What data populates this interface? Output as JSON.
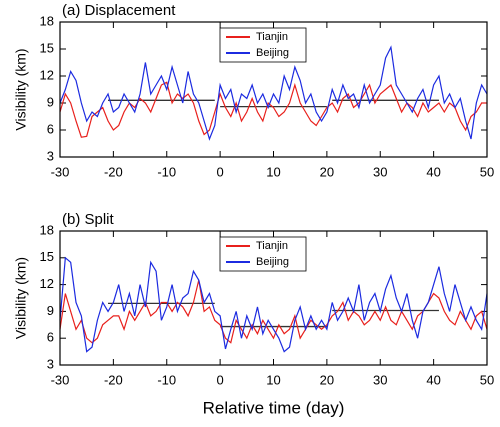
{
  "chart_data": [
    {
      "type": "line",
      "title": "(a) Displacement",
      "ylabel": "Visibility (km)",
      "x": [
        -30,
        -29,
        -28,
        -27,
        -26,
        -25,
        -24,
        -23,
        -22,
        -21,
        -20,
        -19,
        -18,
        -17,
        -16,
        -15,
        -14,
        -13,
        -12,
        -11,
        -10,
        -9,
        -8,
        -7,
        -6,
        -5,
        -4,
        -3,
        -2,
        -1,
        0,
        1,
        2,
        3,
        4,
        5,
        6,
        7,
        8,
        9,
        10,
        11,
        12,
        13,
        14,
        15,
        16,
        17,
        18,
        19,
        20,
        21,
        22,
        23,
        24,
        25,
        26,
        27,
        28,
        29,
        30,
        31,
        32,
        33,
        34,
        35,
        36,
        37,
        38,
        39,
        40,
        41,
        42,
        43,
        44,
        45,
        46,
        47,
        48,
        49,
        50
      ],
      "series": [
        {
          "name": "Tianjin",
          "color": "#e8201c",
          "values": [
            8,
            10,
            9,
            7,
            5.2,
            5.3,
            7.5,
            8,
            8.5,
            7,
            6,
            6.5,
            8,
            9,
            8.5,
            9.5,
            9,
            8,
            9.5,
            11,
            11.3,
            9,
            10,
            9.5,
            10,
            9,
            7,
            5.5,
            6,
            8,
            10,
            8.5,
            7.5,
            9,
            7,
            8,
            9.5,
            8,
            7,
            9,
            8.5,
            7.5,
            8,
            9,
            11,
            9,
            8,
            7,
            6.5,
            7.5,
            8.5,
            9,
            8,
            9.5,
            10,
            8.5,
            9,
            10,
            11,
            9,
            10,
            10.5,
            11,
            9.5,
            8,
            9,
            8.5,
            7.5,
            9,
            8,
            8.5,
            9,
            8,
            9,
            8.5,
            7,
            6,
            7.5,
            8,
            9,
            9
          ]
        },
        {
          "name": "Beijing",
          "color": "#1c2be0",
          "values": [
            9,
            10.5,
            12.5,
            11.5,
            9,
            7,
            8,
            7.5,
            9,
            10,
            8,
            8.5,
            10,
            9,
            8,
            10,
            13.5,
            10,
            11,
            12,
            10.5,
            13,
            11,
            9,
            12.5,
            10,
            9,
            7,
            5,
            6.5,
            11,
            9.5,
            10.5,
            8,
            10,
            9.5,
            11,
            9,
            10,
            8.5,
            10,
            9,
            12,
            10.5,
            13,
            11.5,
            9,
            10,
            8,
            7,
            8,
            10.5,
            9,
            11,
            9.5,
            10,
            8.5,
            11,
            9,
            10,
            11,
            14,
            15.2,
            11,
            10,
            9,
            8,
            9.5,
            10.5,
            8.5,
            11,
            12,
            9,
            10,
            8.5,
            9.5,
            7,
            5,
            9,
            11,
            10
          ]
        }
      ],
      "means": [
        {
          "x": [
            -21,
            -1
          ],
          "y": 9.3
        },
        {
          "x": [
            0,
            20
          ],
          "y": 8.6
        },
        {
          "x": [
            21,
            41
          ],
          "y": 9.3
        }
      ],
      "xlim": [
        -30,
        50
      ],
      "xticks": [
        -30,
        -20,
        -10,
        0,
        10,
        20,
        30,
        40,
        50
      ],
      "ylim": [
        3,
        18
      ],
      "yticks": [
        3,
        6,
        9,
        12,
        15,
        18
      ]
    },
    {
      "type": "line",
      "title": "(b) Split",
      "ylabel": "Visibility (km)",
      "xlabel": "Relative time (day)",
      "x": [
        -30,
        -29,
        -28,
        -27,
        -26,
        -25,
        -24,
        -23,
        -22,
        -21,
        -20,
        -19,
        -18,
        -17,
        -16,
        -15,
        -14,
        -13,
        -12,
        -11,
        -10,
        -9,
        -8,
        -7,
        -6,
        -5,
        -4,
        -3,
        -2,
        -1,
        0,
        1,
        2,
        3,
        4,
        5,
        6,
        7,
        8,
        9,
        10,
        11,
        12,
        13,
        14,
        15,
        16,
        17,
        18,
        19,
        20,
        21,
        22,
        23,
        24,
        25,
        26,
        27,
        28,
        29,
        30,
        31,
        32,
        33,
        34,
        35,
        36,
        37,
        38,
        39,
        40,
        41,
        42,
        43,
        44,
        45,
        46,
        47,
        48,
        49,
        50
      ],
      "series": [
        {
          "name": "Tianjin",
          "color": "#e8201c",
          "values": [
            7,
            11,
            9,
            7,
            8,
            6,
            5.5,
            6,
            7.5,
            8,
            8.5,
            8.5,
            7,
            9,
            8,
            9,
            10,
            8.5,
            9,
            10,
            10,
            9,
            10,
            9.5,
            8.5,
            10,
            12.5,
            9,
            9.5,
            8,
            7.5,
            6,
            5.5,
            8,
            7,
            6,
            7.5,
            6.5,
            8,
            7,
            6,
            7.5,
            6.5,
            7,
            8.5,
            6,
            7,
            8,
            7.5,
            7,
            7.5,
            8.5,
            9,
            10,
            8,
            9,
            8.5,
            7.5,
            8,
            9,
            8,
            9.5,
            8,
            7.5,
            9,
            8,
            7,
            8.5,
            9,
            10,
            11,
            10.5,
            9,
            8,
            7.5,
            9,
            8,
            7,
            8.5,
            9,
            7
          ]
        },
        {
          "name": "Beijing",
          "color": "#1c2be0",
          "values": [
            8,
            15,
            14.5,
            10,
            8.5,
            4.5,
            5,
            8,
            10,
            9,
            10,
            12,
            9,
            11,
            8.5,
            12,
            9.5,
            14.5,
            13.5,
            8,
            9.5,
            12,
            9,
            10.5,
            11,
            13.5,
            12.5,
            10,
            11,
            9,
            8.5,
            4.8,
            7,
            9,
            6,
            8.5,
            7,
            9.5,
            6.5,
            8,
            7,
            6,
            4.5,
            5,
            8,
            9.5,
            7,
            8.5,
            7,
            8,
            7,
            10,
            8,
            9,
            10.5,
            9,
            12,
            8,
            10,
            11,
            9,
            11.5,
            13,
            10.5,
            9,
            11,
            8,
            6,
            9,
            10,
            12,
            14,
            11,
            9,
            12,
            10,
            8,
            9.5,
            8,
            7,
            11
          ]
        }
      ],
      "means": [
        {
          "x": [
            -21,
            -1
          ],
          "y": 9.9
        },
        {
          "x": [
            0,
            20
          ],
          "y": 7.3
        },
        {
          "x": [
            21,
            41
          ],
          "y": 9.1
        }
      ],
      "xlim": [
        -30,
        50
      ],
      "xticks": [
        -30,
        -20,
        -10,
        0,
        10,
        20,
        30,
        40,
        50
      ],
      "ylim": [
        3,
        18
      ],
      "yticks": [
        3,
        6,
        9,
        12,
        15,
        18
      ]
    }
  ]
}
